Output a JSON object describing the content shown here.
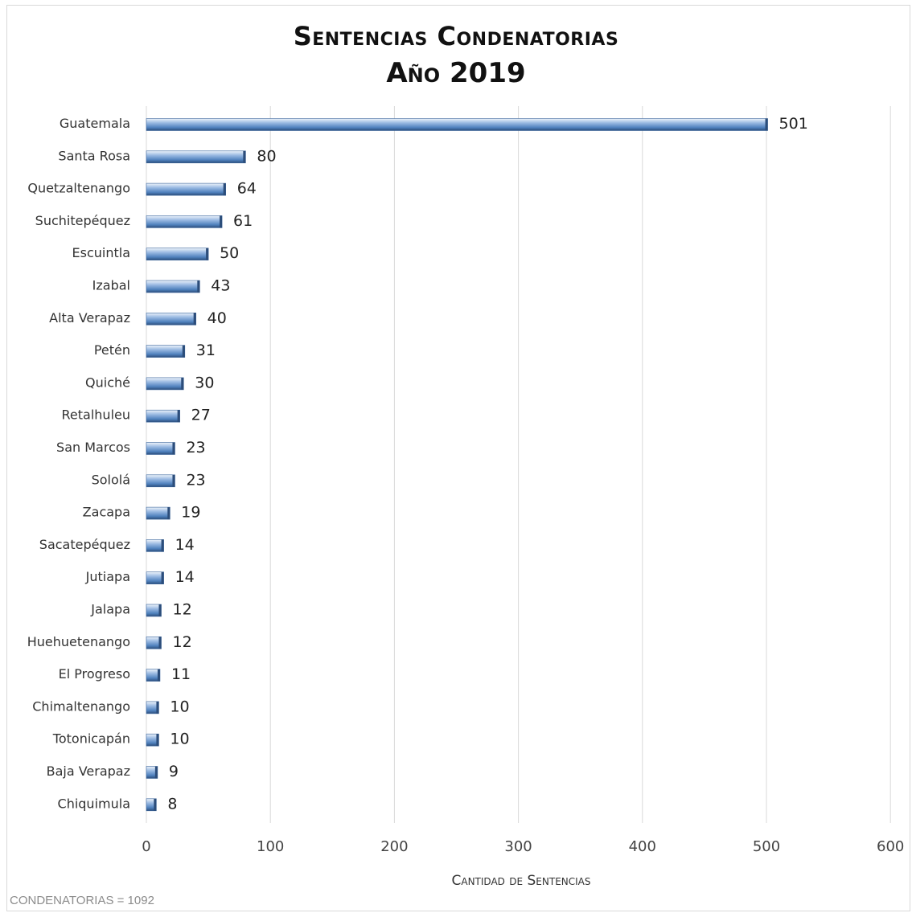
{
  "chart_data": {
    "type": "bar",
    "orientation": "horizontal",
    "title_line1": "Sentencias Condenatorias",
    "title_line2": "Año 2019",
    "xlabel": "Cantidad de Sentencias",
    "ylabel": "",
    "xlim": [
      0,
      600
    ],
    "x_ticks": [
      "0",
      "100",
      "200",
      "300",
      "400",
      "500",
      "600"
    ],
    "grid": "vertical",
    "legend": "none",
    "bar_color": "#4f81bd",
    "categories": [
      "Guatemala",
      "Santa Rosa",
      "Quetzaltenango",
      "Suchitepéquez",
      "Escuintla",
      "Izabal",
      "Alta Verapaz",
      "Petén",
      "Quiché",
      "Retalhuleu",
      "San Marcos",
      "Sololá",
      "Zacapa",
      "Sacatepéquez",
      "Jutiapa",
      "Jalapa",
      "Huehuetenango",
      "El Progreso",
      "Chimaltenango",
      "Totonicapán",
      "Baja Verapaz",
      "Chiquimula"
    ],
    "values": [
      501,
      80,
      64,
      61,
      50,
      43,
      40,
      31,
      30,
      27,
      23,
      23,
      19,
      14,
      14,
      12,
      12,
      11,
      10,
      10,
      9,
      8
    ],
    "footnote": "CONDENATORIAS = 1092"
  }
}
